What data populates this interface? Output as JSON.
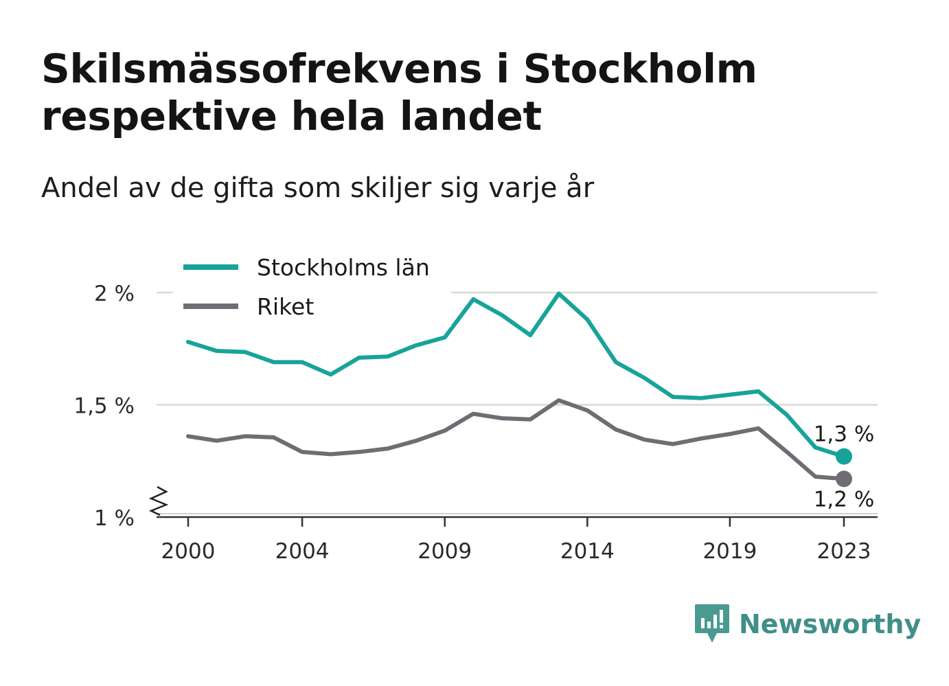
{
  "title": "Skilsmässofrekvens i Stockholm respektive hela landet",
  "subtitle": "Andel av de gifta som skiljer sig varje år",
  "brand": {
    "name": "Newsworthy",
    "icon": "newsworthy-logo-icon"
  },
  "colors": {
    "stockholm": "#17a39a",
    "riket": "#6f6d73",
    "grid": "#d9d9d9",
    "axis": "#333333",
    "brand": "#3f8f8a"
  },
  "chart_data": {
    "type": "line",
    "x": [
      2000,
      2001,
      2002,
      2003,
      2004,
      2005,
      2006,
      2007,
      2008,
      2009,
      2010,
      2011,
      2012,
      2013,
      2014,
      2015,
      2016,
      2017,
      2018,
      2019,
      2020,
      2021,
      2022,
      2023
    ],
    "x_ticks": [
      2000,
      2004,
      2009,
      2014,
      2019,
      2023
    ],
    "x_tick_labels": [
      "2000",
      "2004",
      "2009",
      "2014",
      "2019",
      "2023"
    ],
    "y_ticks": [
      1,
      1.5,
      2
    ],
    "y_tick_labels": [
      "1 %",
      "1,5 %",
      "2 %"
    ],
    "ylim": [
      1,
      2
    ],
    "axis_break": true,
    "grid": true,
    "legend": "top-left",
    "series": [
      {
        "name": "Stockholms län",
        "values": [
          1.78,
          1.74,
          1.735,
          1.69,
          1.69,
          1.635,
          1.71,
          1.715,
          1.765,
          1.8,
          1.97,
          1.9,
          1.81,
          1.995,
          1.88,
          1.69,
          1.62,
          1.535,
          1.53,
          1.545,
          1.56,
          1.455,
          1.31,
          1.27
        ],
        "end_label": "1,3 %"
      },
      {
        "name": "Riket",
        "values": [
          1.36,
          1.34,
          1.36,
          1.355,
          1.29,
          1.28,
          1.29,
          1.305,
          1.34,
          1.385,
          1.46,
          1.44,
          1.435,
          1.52,
          1.475,
          1.39,
          1.345,
          1.325,
          1.35,
          1.37,
          1.395,
          1.29,
          1.18,
          1.17
        ],
        "end_label": "1,2 %"
      }
    ]
  }
}
